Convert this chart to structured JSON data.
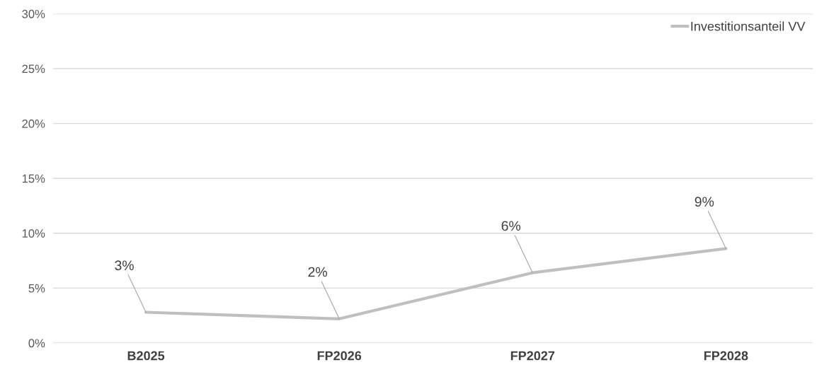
{
  "chart_data": {
    "type": "line",
    "categories": [
      "B2025",
      "FP2026",
      "FP2027",
      "FP2028"
    ],
    "series": [
      {
        "name": "Investitionsanteil VV",
        "color": "#bfbfbf",
        "values": [
          2.8,
          2.2,
          6.4,
          8.6
        ],
        "value_labels": [
          "3%",
          "2%",
          "6%",
          "9%"
        ]
      }
    ],
    "ylim": [
      0,
      30
    ],
    "yticks": [
      {
        "value": 0,
        "label": "0%"
      },
      {
        "value": 5,
        "label": "5%"
      },
      {
        "value": 10,
        "label": "10%"
      },
      {
        "value": 15,
        "label": "15%"
      },
      {
        "value": 20,
        "label": "20%"
      },
      {
        "value": 25,
        "label": "25%"
      },
      {
        "value": 30,
        "label": "30%"
      }
    ],
    "grid": "y",
    "legend": "top right",
    "marker": "none",
    "line_style": "solid"
  }
}
